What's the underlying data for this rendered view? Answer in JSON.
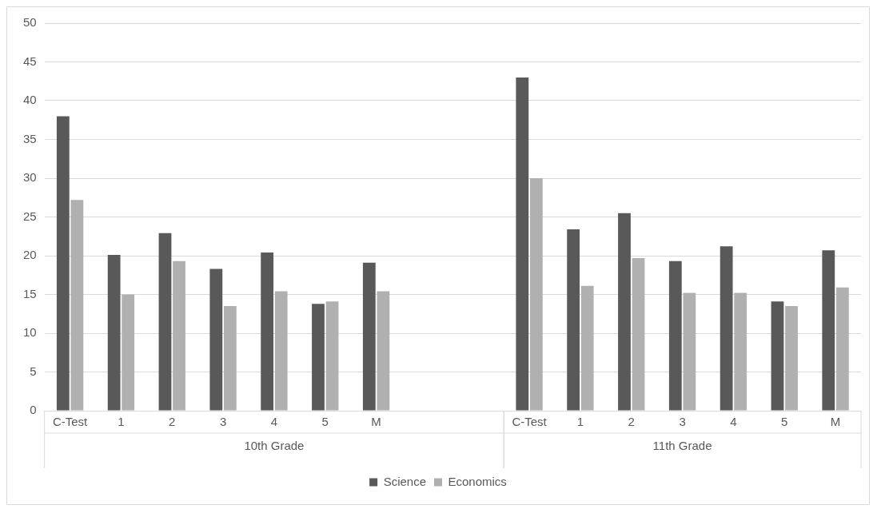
{
  "chart_data": {
    "type": "bar",
    "categories": [
      "C-Test",
      "1",
      "2",
      "3",
      "4",
      "5",
      "M",
      null,
      null,
      "C-Test",
      "1",
      "2",
      "3",
      "4",
      "5",
      "M"
    ],
    "series": [
      {
        "name": "Science",
        "color": "#595959",
        "values": [
          38,
          20.1,
          22.9,
          18.3,
          20.4,
          13.8,
          19.1,
          null,
          null,
          43,
          23.4,
          25.5,
          19.3,
          21.2,
          14.1,
          20.7
        ]
      },
      {
        "name": "Economics",
        "color": "#b0b0b0",
        "values": [
          27.2,
          15,
          19.3,
          13.5,
          15.4,
          14.1,
          15.4,
          null,
          null,
          30,
          16.1,
          19.7,
          15.2,
          15.2,
          13.5,
          15.9
        ]
      }
    ],
    "annotations": [
      "10th Grade",
      "11th Grade"
    ],
    "ylim": [
      0,
      50
    ],
    "yticks": [
      0,
      5,
      10,
      15,
      20,
      25,
      30,
      35,
      40,
      45,
      50
    ],
    "grid": "y",
    "legend": "bottom"
  }
}
